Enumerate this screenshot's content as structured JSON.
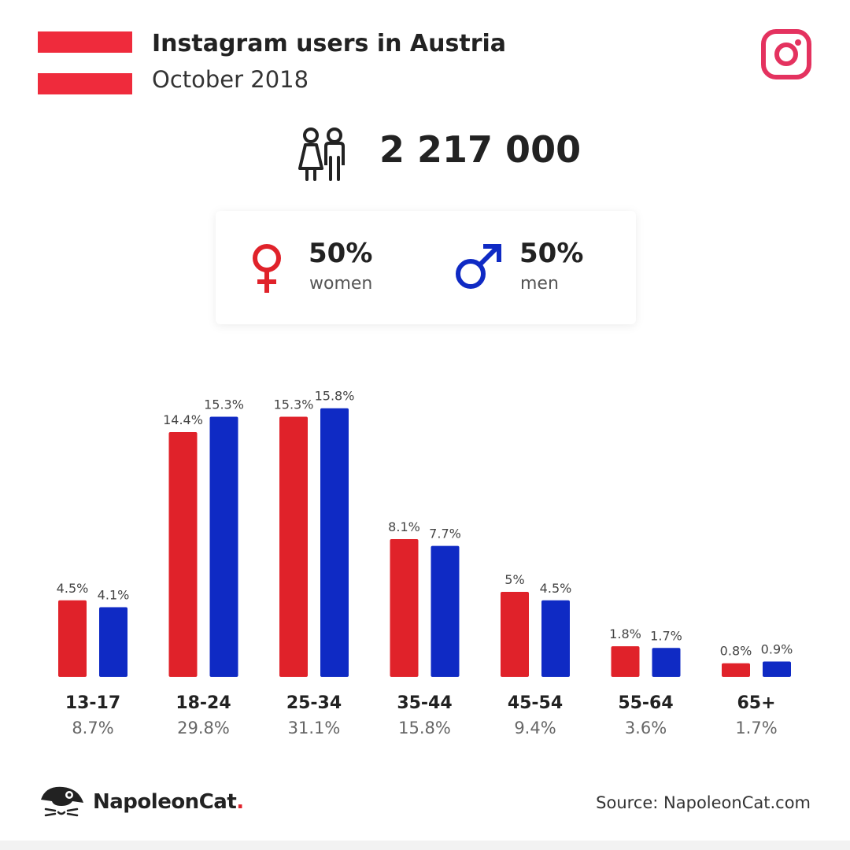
{
  "header": {
    "title": "Instagram users in Austria",
    "subtitle": "October 2018"
  },
  "total_users": "2 217 000",
  "gender": {
    "women_pct": "50%",
    "women_label": "women",
    "men_pct": "50%",
    "men_label": "men"
  },
  "colors": {
    "women": "#e0222a",
    "men": "#0f2ac4",
    "flag_red": "#ef2b3c",
    "instagram": "#e4325f"
  },
  "chart_data": {
    "type": "bar",
    "categories": [
      "13-17",
      "18-24",
      "25-34",
      "35-44",
      "45-54",
      "55-64",
      "65+"
    ],
    "category_totals": [
      "8.7%",
      "29.8%",
      "31.1%",
      "15.8%",
      "9.4%",
      "3.6%",
      "1.7%"
    ],
    "series": [
      {
        "name": "women",
        "values": [
          4.5,
          14.4,
          15.3,
          8.1,
          5,
          1.8,
          0.8
        ],
        "labels": [
          "4.5%",
          "14.4%",
          "15.3%",
          "8.1%",
          "5%",
          "1.8%",
          "0.8%"
        ]
      },
      {
        "name": "men",
        "values": [
          4.1,
          15.3,
          15.8,
          7.7,
          4.5,
          1.7,
          0.9
        ],
        "labels": [
          "4.1%",
          "15.3%",
          "15.8%",
          "7.7%",
          "4.5%",
          "1.7%",
          "0.9%"
        ]
      }
    ],
    "ylim": [
      0,
      16
    ]
  },
  "footer": {
    "brand": "NapoleonCat",
    "brand_dot": ".",
    "source": "Source: NapoleonCat.com"
  },
  "icons": {
    "flag": "austria-flag-icon",
    "instagram": "instagram-icon",
    "users": "users-icon",
    "female": "female-icon",
    "male": "male-icon",
    "brand": "napoleoncat-logo-icon"
  }
}
